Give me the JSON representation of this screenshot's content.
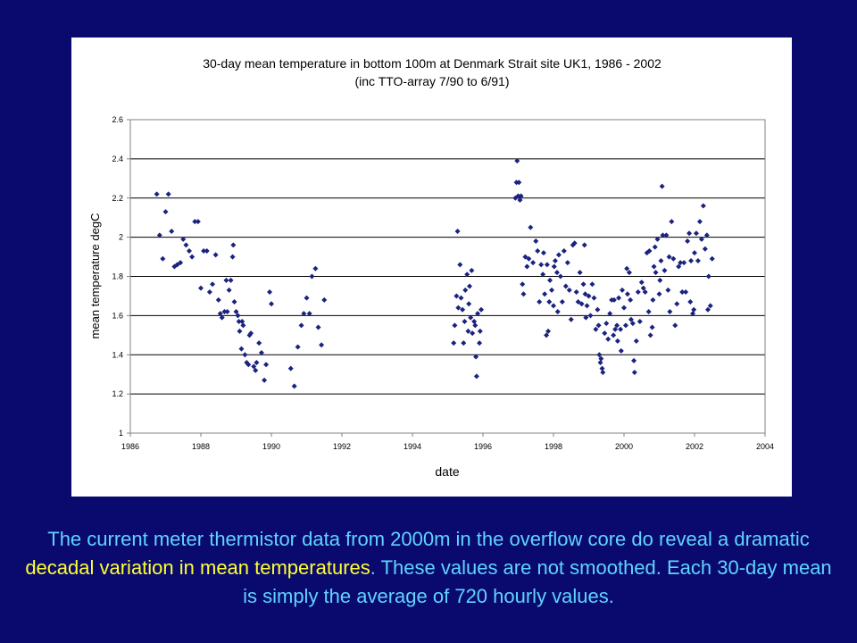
{
  "caption": {
    "part1": "The current meter thermistor data from 2000m in the overflow core do reveal a dramatic ",
    "highlight": "decadal variation in mean temperatures",
    "part2": ". These values are not smoothed. Each 30-day mean is simply the average of 720 hourly values."
  },
  "colors": {
    "background": "#0a0a6e",
    "caption_text": "#5fd4ff",
    "caption_highlight": "#ffff33",
    "marker": "#1a237e"
  },
  "chart_data": {
    "type": "scatter",
    "title": "30-day mean temperature in bottom 100m at Denmark Strait site UK1, 1986 - 2002",
    "subtitle": "(inc TTO-array 7/90 to 6/91)",
    "xlabel": "date",
    "ylabel": "mean temperature degC",
    "xlim": [
      1986,
      2004
    ],
    "ylim": [
      1,
      2.6
    ],
    "xticks": [
      "1986",
      "1988",
      "1990",
      "1992",
      "1994",
      "1996",
      "1998",
      "2000",
      "2002",
      "2004"
    ],
    "yticks": [
      "1",
      "1.2",
      "1.4",
      "1.6",
      "1.8",
      "2",
      "2.2",
      "2.4",
      "2.6"
    ],
    "grid": "horizontal",
    "marker": "diamond",
    "points": [
      [
        1986.75,
        2.22
      ],
      [
        1986.83,
        2.01
      ],
      [
        1986.92,
        1.89
      ],
      [
        1987.0,
        2.13
      ],
      [
        1987.08,
        2.22
      ],
      [
        1987.17,
        2.03
      ],
      [
        1987.25,
        1.85
      ],
      [
        1987.33,
        1.86
      ],
      [
        1987.42,
        1.87
      ],
      [
        1987.5,
        1.99
      ],
      [
        1987.58,
        1.96
      ],
      [
        1987.67,
        1.93
      ],
      [
        1987.75,
        1.9
      ],
      [
        1987.83,
        2.08
      ],
      [
        1987.92,
        2.08
      ],
      [
        1988.0,
        1.74
      ],
      [
        1988.08,
        1.93
      ],
      [
        1988.17,
        1.93
      ],
      [
        1988.25,
        1.72
      ],
      [
        1988.33,
        1.76
      ],
      [
        1988.42,
        1.91
      ],
      [
        1988.5,
        1.68
      ],
      [
        1988.55,
        1.61
      ],
      [
        1988.6,
        1.59
      ],
      [
        1988.67,
        1.62
      ],
      [
        1988.72,
        1.78
      ],
      [
        1988.75,
        1.62
      ],
      [
        1988.8,
        1.73
      ],
      [
        1988.85,
        1.78
      ],
      [
        1988.9,
        1.9
      ],
      [
        1988.92,
        1.96
      ],
      [
        1988.95,
        1.67
      ],
      [
        1989.0,
        1.62
      ],
      [
        1989.05,
        1.6
      ],
      [
        1989.08,
        1.57
      ],
      [
        1989.1,
        1.52
      ],
      [
        1989.15,
        1.43
      ],
      [
        1989.17,
        1.57
      ],
      [
        1989.2,
        1.55
      ],
      [
        1989.25,
        1.4
      ],
      [
        1989.3,
        1.36
      ],
      [
        1989.35,
        1.35
      ],
      [
        1989.38,
        1.5
      ],
      [
        1989.42,
        1.51
      ],
      [
        1989.5,
        1.34
      ],
      [
        1989.55,
        1.32
      ],
      [
        1989.58,
        1.36
      ],
      [
        1989.65,
        1.46
      ],
      [
        1989.72,
        1.41
      ],
      [
        1989.8,
        1.27
      ],
      [
        1989.85,
        1.35
      ],
      [
        1989.95,
        1.72
      ],
      [
        1990.0,
        1.66
      ],
      [
        1990.55,
        1.33
      ],
      [
        1990.65,
        1.24
      ],
      [
        1990.75,
        1.44
      ],
      [
        1990.85,
        1.55
      ],
      [
        1990.92,
        1.61
      ],
      [
        1991.0,
        1.69
      ],
      [
        1991.08,
        1.61
      ],
      [
        1991.15,
        1.8
      ],
      [
        1991.25,
        1.84
      ],
      [
        1991.33,
        1.54
      ],
      [
        1991.42,
        1.45
      ],
      [
        1991.5,
        1.68
      ],
      [
        1995.17,
        1.46
      ],
      [
        1995.2,
        1.55
      ],
      [
        1995.25,
        1.7
      ],
      [
        1995.28,
        2.03
      ],
      [
        1995.3,
        1.64
      ],
      [
        1995.35,
        1.86
      ],
      [
        1995.38,
        1.69
      ],
      [
        1995.42,
        1.63
      ],
      [
        1995.45,
        1.46
      ],
      [
        1995.48,
        1.57
      ],
      [
        1995.5,
        1.73
      ],
      [
        1995.55,
        1.81
      ],
      [
        1995.58,
        1.52
      ],
      [
        1995.6,
        1.66
      ],
      [
        1995.62,
        1.75
      ],
      [
        1995.65,
        1.59
      ],
      [
        1995.68,
        1.83
      ],
      [
        1995.7,
        1.51
      ],
      [
        1995.75,
        1.57
      ],
      [
        1995.78,
        1.55
      ],
      [
        1995.8,
        1.39
      ],
      [
        1995.82,
        1.29
      ],
      [
        1995.85,
        1.61
      ],
      [
        1995.9,
        1.46
      ],
      [
        1995.92,
        1.52
      ],
      [
        1995.95,
        1.63
      ],
      [
        1996.92,
        2.2
      ],
      [
        1996.95,
        2.28
      ],
      [
        1996.97,
        2.39
      ],
      [
        1997.0,
        2.21
      ],
      [
        1997.02,
        2.28
      ],
      [
        1997.05,
        2.19
      ],
      [
        1997.08,
        2.21
      ],
      [
        1997.12,
        1.76
      ],
      [
        1997.15,
        1.71
      ],
      [
        1997.2,
        1.9
      ],
      [
        1997.25,
        1.85
      ],
      [
        1997.3,
        1.89
      ],
      [
        1997.35,
        2.05
      ],
      [
        1997.42,
        1.87
      ],
      [
        1997.5,
        1.98
      ],
      [
        1997.55,
        1.93
      ],
      [
        1997.6,
        1.67
      ],
      [
        1997.65,
        1.86
      ],
      [
        1997.7,
        1.81
      ],
      [
        1997.72,
        1.92
      ],
      [
        1997.75,
        1.71
      ],
      [
        1997.8,
        1.5
      ],
      [
        1997.82,
        1.86
      ],
      [
        1997.85,
        1.52
      ],
      [
        1997.88,
        1.67
      ],
      [
        1997.9,
        1.78
      ],
      [
        1997.95,
        1.73
      ],
      [
        1998.0,
        1.65
      ],
      [
        1998.02,
        1.85
      ],
      [
        1998.05,
        1.88
      ],
      [
        1998.1,
        1.82
      ],
      [
        1998.12,
        1.62
      ],
      [
        1998.15,
        1.91
      ],
      [
        1998.2,
        1.8
      ],
      [
        1998.25,
        1.67
      ],
      [
        1998.3,
        1.93
      ],
      [
        1998.35,
        1.75
      ],
      [
        1998.4,
        1.87
      ],
      [
        1998.45,
        1.73
      ],
      [
        1998.5,
        1.58
      ],
      [
        1998.55,
        1.96
      ],
      [
        1998.6,
        1.97
      ],
      [
        1998.65,
        1.72
      ],
      [
        1998.7,
        1.67
      ],
      [
        1998.75,
        1.82
      ],
      [
        1998.8,
        1.66
      ],
      [
        1998.85,
        1.76
      ],
      [
        1998.88,
        1.96
      ],
      [
        1998.9,
        1.71
      ],
      [
        1998.92,
        1.59
      ],
      [
        1998.95,
        1.65
      ],
      [
        1999.0,
        1.7
      ],
      [
        1999.05,
        1.6
      ],
      [
        1999.1,
        1.76
      ],
      [
        1999.15,
        1.69
      ],
      [
        1999.2,
        1.53
      ],
      [
        1999.25,
        1.63
      ],
      [
        1999.28,
        1.55
      ],
      [
        1999.3,
        1.4
      ],
      [
        1999.33,
        1.36
      ],
      [
        1999.35,
        1.38
      ],
      [
        1999.38,
        1.33
      ],
      [
        1999.4,
        1.31
      ],
      [
        1999.45,
        1.51
      ],
      [
        1999.5,
        1.56
      ],
      [
        1999.55,
        1.48
      ],
      [
        1999.6,
        1.61
      ],
      [
        1999.65,
        1.68
      ],
      [
        1999.7,
        1.5
      ],
      [
        1999.72,
        1.68
      ],
      [
        1999.75,
        1.53
      ],
      [
        1999.8,
        1.55
      ],
      [
        1999.82,
        1.47
      ],
      [
        1999.85,
        1.69
      ],
      [
        1999.9,
        1.53
      ],
      [
        1999.92,
        1.42
      ],
      [
        1999.95,
        1.73
      ],
      [
        2000.0,
        1.64
      ],
      [
        2000.05,
        1.55
      ],
      [
        2000.08,
        1.84
      ],
      [
        2000.1,
        1.71
      ],
      [
        2000.15,
        1.82
      ],
      [
        2000.18,
        1.68
      ],
      [
        2000.2,
        1.58
      ],
      [
        2000.25,
        1.56
      ],
      [
        2000.28,
        1.37
      ],
      [
        2000.3,
        1.31
      ],
      [
        2000.35,
        1.47
      ],
      [
        2000.4,
        1.72
      ],
      [
        2000.45,
        1.57
      ],
      [
        2000.5,
        1.77
      ],
      [
        2000.55,
        1.74
      ],
      [
        2000.6,
        1.72
      ],
      [
        2000.65,
        1.92
      ],
      [
        2000.7,
        1.62
      ],
      [
        2000.72,
        1.93
      ],
      [
        2000.75,
        1.5
      ],
      [
        2000.8,
        1.54
      ],
      [
        2000.82,
        1.68
      ],
      [
        2000.85,
        1.85
      ],
      [
        2000.88,
        1.95
      ],
      [
        2000.9,
        1.82
      ],
      [
        2000.95,
        1.99
      ],
      [
        2001.0,
        1.71
      ],
      [
        2001.02,
        1.78
      ],
      [
        2001.05,
        1.88
      ],
      [
        2001.08,
        2.26
      ],
      [
        2001.1,
        2.01
      ],
      [
        2001.15,
        1.83
      ],
      [
        2001.2,
        2.01
      ],
      [
        2001.25,
        1.73
      ],
      [
        2001.28,
        1.9
      ],
      [
        2001.3,
        1.62
      ],
      [
        2001.35,
        2.08
      ],
      [
        2001.4,
        1.89
      ],
      [
        2001.45,
        1.55
      ],
      [
        2001.5,
        1.66
      ],
      [
        2001.55,
        1.85
      ],
      [
        2001.6,
        1.87
      ],
      [
        2001.65,
        1.72
      ],
      [
        2001.7,
        1.87
      ],
      [
        2001.75,
        1.72
      ],
      [
        2001.8,
        1.98
      ],
      [
        2001.85,
        2.02
      ],
      [
        2001.88,
        1.67
      ],
      [
        2001.9,
        1.88
      ],
      [
        2001.95,
        1.61
      ],
      [
        2001.98,
        1.63
      ],
      [
        2002.0,
        1.92
      ],
      [
        2002.05,
        2.02
      ],
      [
        2002.1,
        1.88
      ],
      [
        2002.15,
        2.08
      ],
      [
        2002.2,
        1.99
      ],
      [
        2002.25,
        2.16
      ],
      [
        2002.3,
        1.94
      ],
      [
        2002.35,
        2.01
      ],
      [
        2002.38,
        1.63
      ],
      [
        2002.4,
        1.8
      ],
      [
        2002.45,
        1.65
      ],
      [
        2002.5,
        1.89
      ]
    ]
  }
}
